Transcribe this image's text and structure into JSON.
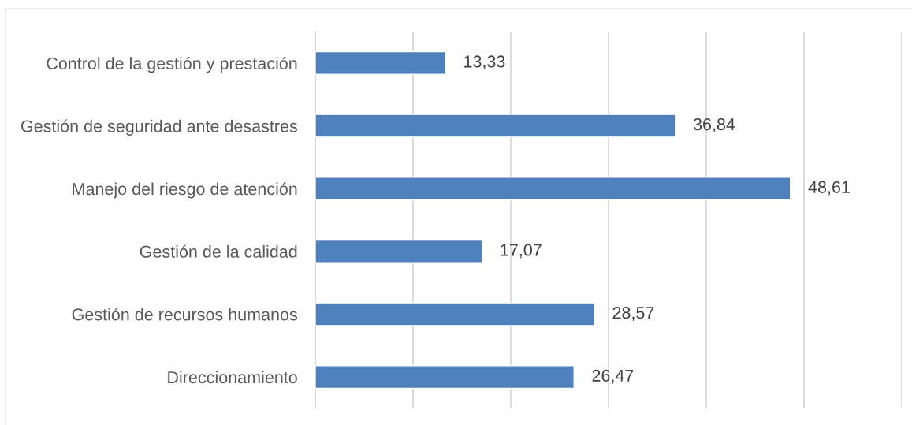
{
  "chart_data": {
    "type": "bar",
    "orientation": "horizontal",
    "categories": [
      "Control de la gestión y prestación",
      "Gestión de seguridad ante desastres",
      "Manejo del riesgo de atención",
      "Gestión de la calidad",
      "Gestión de recursos humanos",
      "Direccionamiento"
    ],
    "values": [
      13.33,
      36.84,
      48.61,
      17.07,
      28.57,
      26.47
    ],
    "value_labels": [
      "13,33",
      "36,84",
      "48,61",
      "17,07",
      "28,57",
      "26,47"
    ],
    "color": "#4f81bd",
    "xlim": [
      0,
      60
    ],
    "xticks": [
      {
        "value": 0,
        "label": null
      },
      {
        "value": 10,
        "label": null
      },
      {
        "value": 20,
        "label": null
      },
      {
        "value": 30,
        "label": null
      },
      {
        "value": 40,
        "label": null
      },
      {
        "value": 50,
        "label": null
      },
      {
        "value": 60,
        "label": null
      }
    ],
    "tick_labels": "y",
    "grid": "x",
    "legend": false
  }
}
